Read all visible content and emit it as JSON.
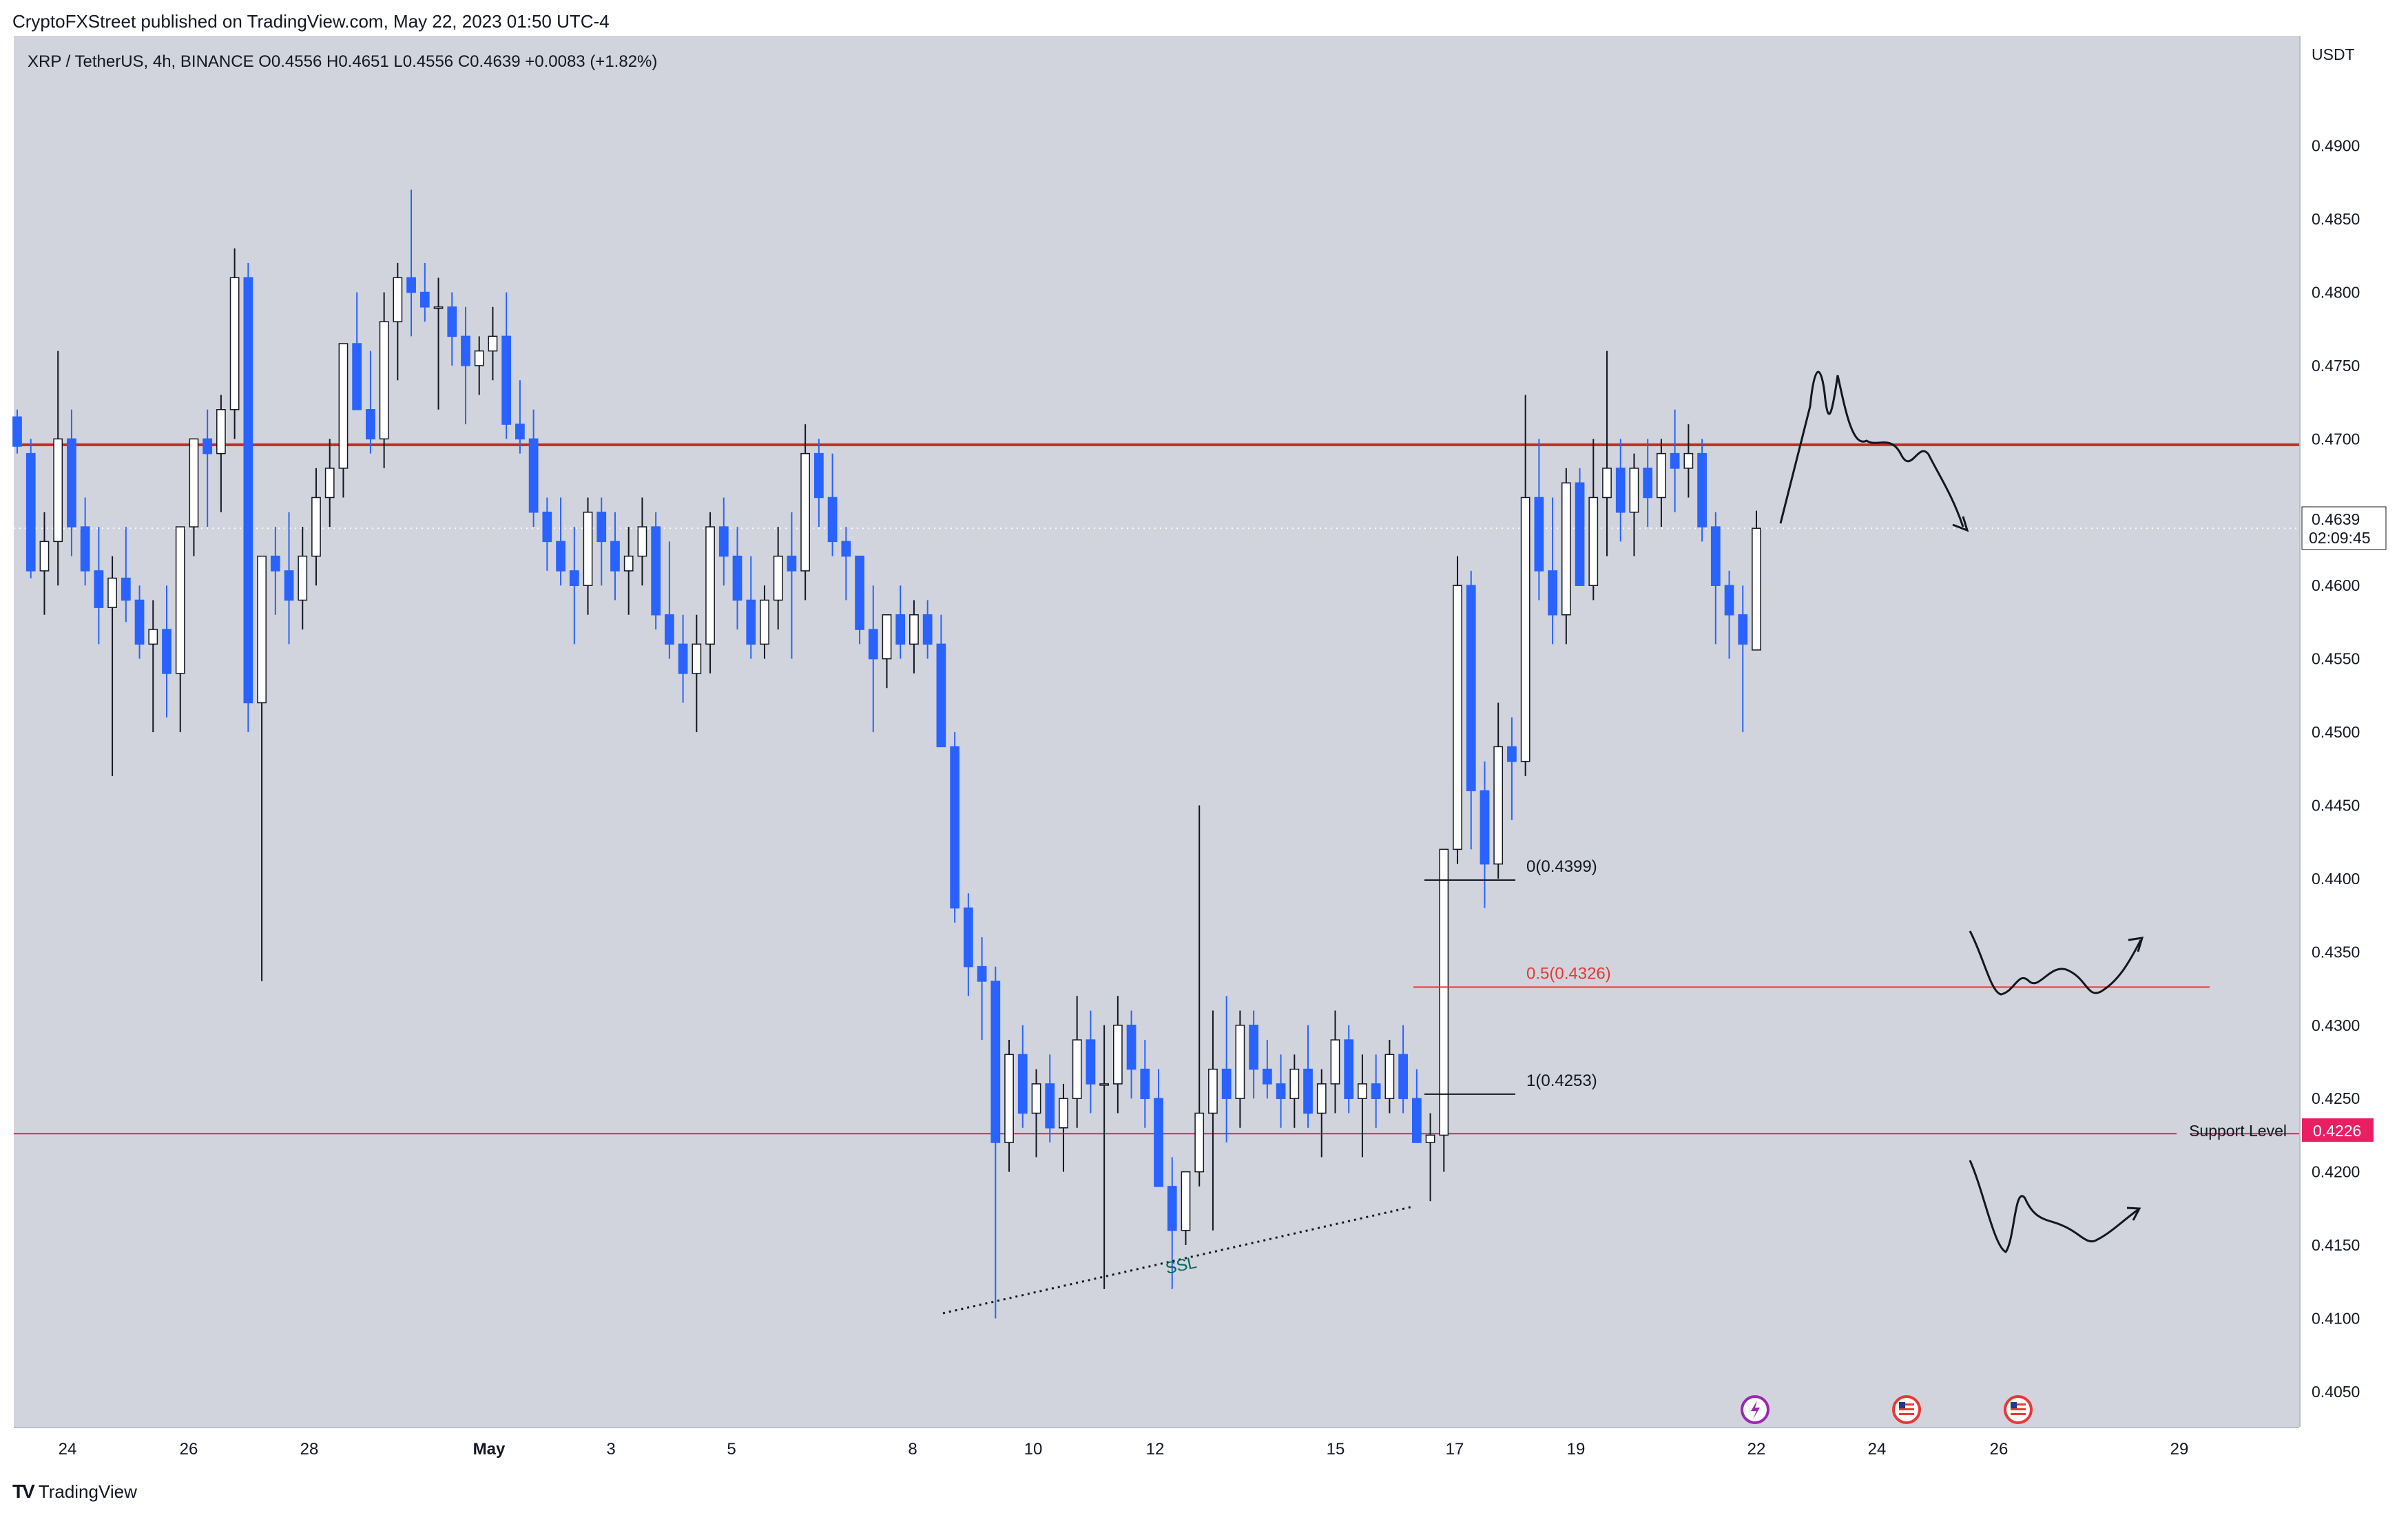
{
  "publisher_line": "CryptoFXStreet published on TradingView.com, May 22, 2023 01:50 UTC-4",
  "footer": {
    "brand": "TradingView"
  },
  "colors": {
    "background": "#d1d4dc",
    "up_candle": "#ffffff",
    "down_candle": "#2962ff",
    "resistance_line": "#c62828",
    "support_line": "#e91e63",
    "fib_0_5": "#e53935",
    "ssl_label": "#00695c",
    "price_label_bg": "#ffffff"
  },
  "chart_data": {
    "type": "candlestick",
    "symbol_line": "XRP / TetherUS, 4h, BINANCE  O0.4556  H0.4651  L0.4556  C0.4639  +0.0083 (+1.82%)",
    "currency": "USDT",
    "y_ticks": [
      "0.4050",
      "0.4100",
      "0.4150",
      "0.4200",
      "0.4250",
      "0.4300",
      "0.4350",
      "0.4400",
      "0.4450",
      "0.4500",
      "0.4550",
      "0.4600",
      "0.4650",
      "0.4700",
      "0.4750",
      "0.4800",
      "0.4850",
      "0.4900"
    ],
    "x_ticks": [
      "24",
      "26",
      "28",
      "May",
      "3",
      "5",
      "8",
      "10",
      "12",
      "15",
      "17",
      "19",
      "22",
      "24",
      "26",
      "29"
    ],
    "ylim": [
      0.4026,
      0.4975
    ],
    "candles_ohlc": [
      [
        0.4715,
        0.472,
        0.469,
        0.4695
      ],
      [
        0.469,
        0.47,
        0.4605,
        0.461
      ],
      [
        0.461,
        0.465,
        0.458,
        0.463
      ],
      [
        0.463,
        0.476,
        0.46,
        0.47
      ],
      [
        0.47,
        0.472,
        0.462,
        0.464
      ],
      [
        0.464,
        0.466,
        0.46,
        0.461
      ],
      [
        0.461,
        0.464,
        0.456,
        0.4585
      ],
      [
        0.4585,
        0.462,
        0.447,
        0.4605
      ],
      [
        0.4605,
        0.464,
        0.4575,
        0.459
      ],
      [
        0.459,
        0.46,
        0.455,
        0.456
      ],
      [
        0.456,
        0.459,
        0.45,
        0.457
      ],
      [
        0.457,
        0.46,
        0.451,
        0.454
      ],
      [
        0.454,
        0.46,
        0.45,
        0.464
      ],
      [
        0.464,
        0.47,
        0.462,
        0.47
      ],
      [
        0.47,
        0.472,
        0.464,
        0.469
      ],
      [
        0.469,
        0.473,
        0.465,
        0.472
      ],
      [
        0.472,
        0.483,
        0.47,
        0.481
      ],
      [
        0.481,
        0.482,
        0.45,
        0.452
      ],
      [
        0.452,
        0.461,
        0.433,
        0.462
      ],
      [
        0.462,
        0.464,
        0.458,
        0.461
      ],
      [
        0.461,
        0.465,
        0.456,
        0.459
      ],
      [
        0.459,
        0.464,
        0.457,
        0.462
      ],
      [
        0.462,
        0.468,
        0.46,
        0.466
      ],
      [
        0.466,
        0.47,
        0.464,
        0.468
      ],
      [
        0.468,
        0.474,
        0.466,
        0.4765
      ],
      [
        0.4765,
        0.48,
        0.472,
        0.472
      ],
      [
        0.472,
        0.476,
        0.469,
        0.47
      ],
      [
        0.47,
        0.48,
        0.468,
        0.478
      ],
      [
        0.478,
        0.482,
        0.474,
        0.481
      ],
      [
        0.481,
        0.487,
        0.477,
        0.48
      ],
      [
        0.48,
        0.482,
        0.478,
        0.479
      ],
      [
        0.479,
        0.481,
        0.472,
        0.479
      ],
      [
        0.479,
        0.48,
        0.475,
        0.477
      ],
      [
        0.477,
        0.479,
        0.471,
        0.475
      ],
      [
        0.475,
        0.477,
        0.473,
        0.476
      ],
      [
        0.476,
        0.479,
        0.474,
        0.477
      ],
      [
        0.477,
        0.48,
        0.47,
        0.471
      ],
      [
        0.471,
        0.474,
        0.469,
        0.47
      ],
      [
        0.47,
        0.472,
        0.464,
        0.465
      ],
      [
        0.465,
        0.466,
        0.461,
        0.463
      ],
      [
        0.463,
        0.466,
        0.46,
        0.461
      ],
      [
        0.461,
        0.464,
        0.456,
        0.46
      ],
      [
        0.46,
        0.466,
        0.458,
        0.465
      ],
      [
        0.465,
        0.466,
        0.46,
        0.463
      ],
      [
        0.463,
        0.465,
        0.459,
        0.461
      ],
      [
        0.461,
        0.464,
        0.458,
        0.462
      ],
      [
        0.462,
        0.466,
        0.46,
        0.464
      ],
      [
        0.464,
        0.465,
        0.457,
        0.458
      ],
      [
        0.458,
        0.463,
        0.455,
        0.456
      ],
      [
        0.456,
        0.458,
        0.452,
        0.454
      ],
      [
        0.454,
        0.458,
        0.45,
        0.456
      ],
      [
        0.456,
        0.465,
        0.454,
        0.464
      ],
      [
        0.464,
        0.466,
        0.46,
        0.462
      ],
      [
        0.462,
        0.464,
        0.457,
        0.459
      ],
      [
        0.459,
        0.462,
        0.455,
        0.456
      ],
      [
        0.456,
        0.46,
        0.455,
        0.459
      ],
      [
        0.459,
        0.464,
        0.457,
        0.462
      ],
      [
        0.462,
        0.465,
        0.455,
        0.461
      ],
      [
        0.461,
        0.471,
        0.459,
        0.469
      ],
      [
        0.469,
        0.47,
        0.464,
        0.466
      ],
      [
        0.466,
        0.469,
        0.462,
        0.463
      ],
      [
        0.463,
        0.464,
        0.459,
        0.462
      ],
      [
        0.462,
        0.462,
        0.456,
        0.457
      ],
      [
        0.457,
        0.46,
        0.45,
        0.455
      ],
      [
        0.455,
        0.458,
        0.453,
        0.458
      ],
      [
        0.458,
        0.46,
        0.455,
        0.456
      ],
      [
        0.456,
        0.459,
        0.454,
        0.458
      ],
      [
        0.458,
        0.459,
        0.455,
        0.456
      ],
      [
        0.456,
        0.458,
        0.453,
        0.449
      ],
      [
        0.449,
        0.45,
        0.437,
        0.438
      ],
      [
        0.438,
        0.439,
        0.432,
        0.434
      ],
      [
        0.434,
        0.436,
        0.429,
        0.433
      ],
      [
        0.433,
        0.434,
        0.41,
        0.422
      ],
      [
        0.422,
        0.429,
        0.42,
        0.428
      ],
      [
        0.428,
        0.43,
        0.423,
        0.424
      ],
      [
        0.424,
        0.427,
        0.421,
        0.426
      ],
      [
        0.426,
        0.428,
        0.422,
        0.423
      ],
      [
        0.423,
        0.426,
        0.42,
        0.425
      ],
      [
        0.425,
        0.432,
        0.423,
        0.429
      ],
      [
        0.429,
        0.431,
        0.424,
        0.426
      ],
      [
        0.426,
        0.43,
        0.412,
        0.426
      ],
      [
        0.426,
        0.432,
        0.424,
        0.43
      ],
      [
        0.43,
        0.431,
        0.425,
        0.427
      ],
      [
        0.427,
        0.429,
        0.423,
        0.425
      ],
      [
        0.425,
        0.427,
        0.419,
        0.419
      ],
      [
        0.419,
        0.421,
        0.412,
        0.416
      ],
      [
        0.416,
        0.42,
        0.415,
        0.42
      ],
      [
        0.42,
        0.445,
        0.419,
        0.424
      ],
      [
        0.424,
        0.431,
        0.416,
        0.427
      ],
      [
        0.427,
        0.432,
        0.422,
        0.425
      ],
      [
        0.425,
        0.431,
        0.423,
        0.43
      ],
      [
        0.43,
        0.431,
        0.425,
        0.427
      ],
      [
        0.427,
        0.429,
        0.425,
        0.426
      ],
      [
        0.426,
        0.428,
        0.423,
        0.425
      ],
      [
        0.425,
        0.428,
        0.423,
        0.427
      ],
      [
        0.427,
        0.43,
        0.423,
        0.424
      ],
      [
        0.424,
        0.427,
        0.421,
        0.426
      ],
      [
        0.426,
        0.431,
        0.424,
        0.429
      ],
      [
        0.429,
        0.43,
        0.424,
        0.425
      ],
      [
        0.425,
        0.428,
        0.421,
        0.426
      ],
      [
        0.426,
        0.428,
        0.423,
        0.425
      ],
      [
        0.425,
        0.429,
        0.424,
        0.428
      ],
      [
        0.428,
        0.43,
        0.424,
        0.425
      ],
      [
        0.425,
        0.427,
        0.422,
        0.422
      ],
      [
        0.422,
        0.424,
        0.418,
        0.4225
      ],
      [
        0.4225,
        0.424,
        0.42,
        0.442
      ],
      [
        0.442,
        0.462,
        0.441,
        0.46
      ],
      [
        0.46,
        0.461,
        0.442,
        0.446
      ],
      [
        0.446,
        0.448,
        0.438,
        0.441
      ],
      [
        0.441,
        0.452,
        0.44,
        0.449
      ],
      [
        0.449,
        0.451,
        0.444,
        0.448
      ],
      [
        0.448,
        0.473,
        0.447,
        0.466
      ],
      [
        0.466,
        0.47,
        0.459,
        0.461
      ],
      [
        0.461,
        0.466,
        0.456,
        0.458
      ],
      [
        0.458,
        0.468,
        0.456,
        0.467
      ],
      [
        0.467,
        0.468,
        0.46,
        0.46
      ],
      [
        0.46,
        0.47,
        0.459,
        0.466
      ],
      [
        0.466,
        0.476,
        0.462,
        0.468
      ],
      [
        0.468,
        0.47,
        0.463,
        0.465
      ],
      [
        0.465,
        0.469,
        0.462,
        0.468
      ],
      [
        0.468,
        0.47,
        0.464,
        0.466
      ],
      [
        0.466,
        0.47,
        0.464,
        0.469
      ],
      [
        0.469,
        0.472,
        0.465,
        0.468
      ],
      [
        0.468,
        0.471,
        0.466,
        0.469
      ],
      [
        0.469,
        0.47,
        0.463,
        0.464
      ],
      [
        0.464,
        0.465,
        0.456,
        0.46
      ],
      [
        0.46,
        0.461,
        0.455,
        0.458
      ],
      [
        0.458,
        0.46,
        0.45,
        0.456
      ],
      [
        0.4556,
        0.4651,
        0.4556,
        0.4639
      ]
    ],
    "horizontal_lines": [
      {
        "price": 0.4696,
        "label": ""
      },
      {
        "price": 0.4226,
        "label": "Support Level"
      }
    ],
    "fib_levels": [
      {
        "label": "0(0.4399)",
        "price": 0.4399
      },
      {
        "label": "0.5(0.4326)",
        "price": 0.4326
      },
      {
        "label": "1(0.4253)",
        "price": 0.4253
      }
    ],
    "annotations": [
      {
        "text": "SSL"
      }
    ],
    "current_price_label": "0.4639",
    "countdown_label": "02:09:45",
    "support_price_label": "0.4226",
    "grid": false,
    "legend": "none"
  }
}
